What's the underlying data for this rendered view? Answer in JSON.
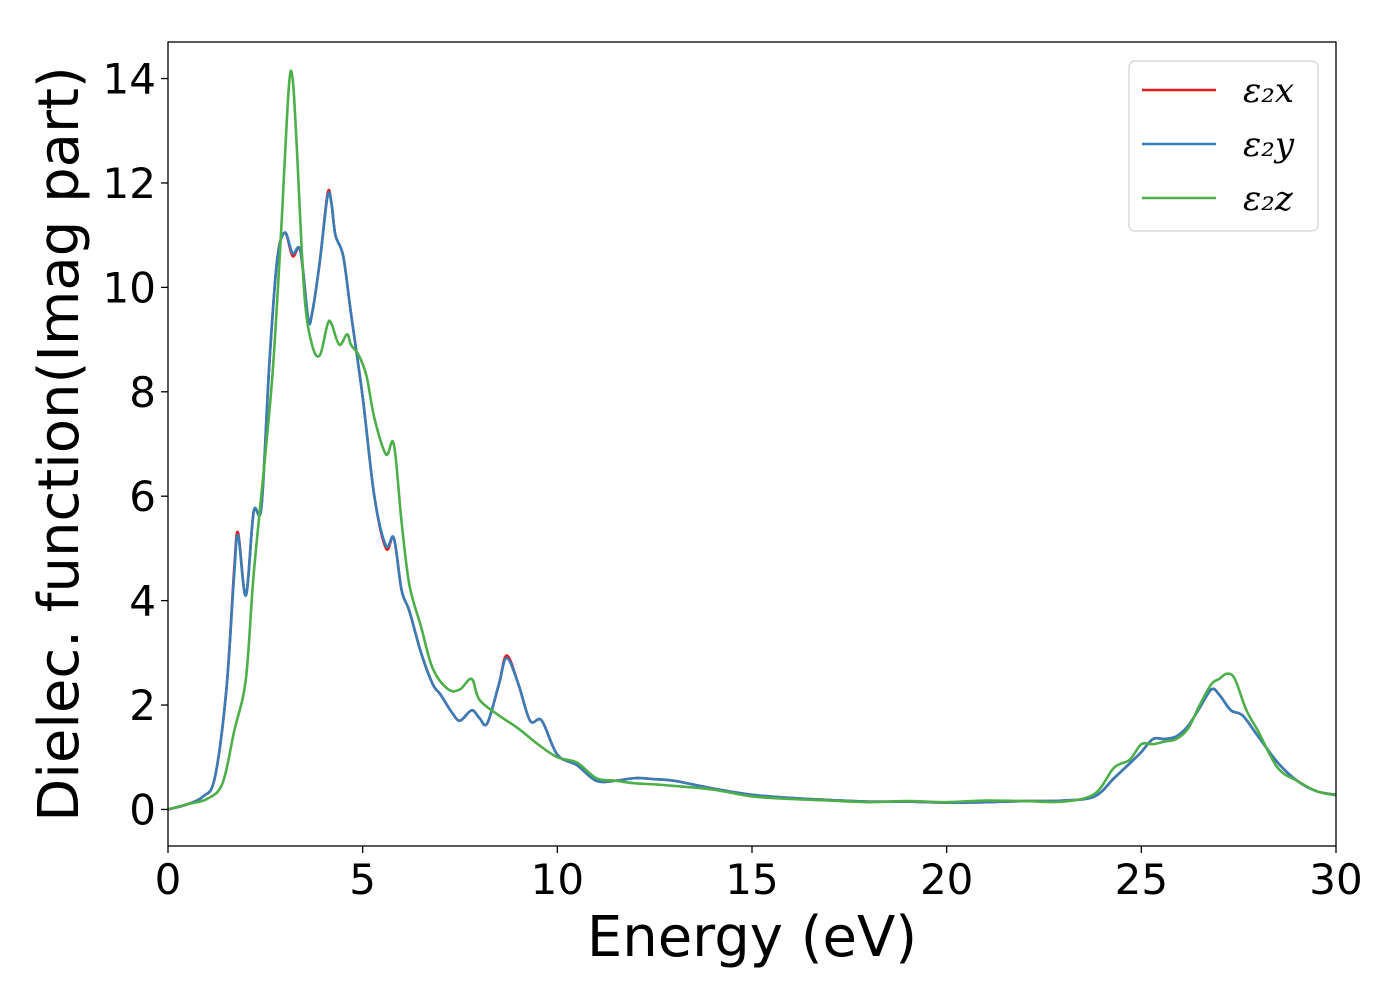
{
  "chart_data": {
    "type": "line",
    "xlabel": "Energy (eV)",
    "ylabel": "Dielec. function(Imag part)",
    "xlim": [
      0,
      30
    ],
    "ylim": [
      -0.7,
      14.7
    ],
    "xticks": [
      0,
      5,
      10,
      15,
      20,
      25,
      30
    ],
    "yticks": [
      0,
      2,
      4,
      6,
      8,
      10,
      12,
      14
    ],
    "grid": false,
    "legend_position": "top-right",
    "series": [
      {
        "name": "ε₂x",
        "color": "#e41a1c",
        "x": [
          0,
          0.5,
          0.9,
          1.2,
          1.5,
          1.7,
          1.8,
          2.0,
          2.2,
          2.4,
          2.6,
          2.8,
          3.0,
          3.2,
          3.4,
          3.6,
          3.7,
          3.9,
          4.1,
          4.2,
          4.3,
          4.5,
          4.7,
          5.0,
          5.3,
          5.6,
          5.8,
          6.0,
          6.2,
          6.5,
          6.8,
          7.0,
          7.3,
          7.5,
          7.8,
          8.0,
          8.2,
          8.5,
          8.7,
          9.0,
          9.3,
          9.6,
          10.0,
          10.5,
          11.0,
          11.5,
          12.0,
          12.5,
          13.0,
          14.0,
          15.0,
          16.0,
          17.0,
          18.0,
          19.0,
          20.0,
          21.0,
          22.0,
          23.0,
          23.8,
          24.3,
          24.8,
          25.0,
          25.3,
          25.6,
          25.9,
          26.2,
          26.5,
          26.8,
          27.0,
          27.3,
          27.6,
          28.0,
          28.5,
          29.0,
          29.5,
          30.0
        ],
        "values": [
          0.0,
          0.1,
          0.25,
          0.6,
          2.3,
          4.6,
          5.3,
          4.1,
          5.7,
          5.8,
          8.5,
          10.5,
          11.05,
          10.6,
          10.7,
          9.4,
          9.5,
          10.5,
          11.8,
          11.6,
          11.0,
          10.6,
          9.5,
          7.9,
          6.0,
          5.0,
          5.2,
          4.2,
          3.8,
          3.0,
          2.4,
          2.2,
          1.85,
          1.7,
          1.9,
          1.75,
          1.65,
          2.4,
          2.95,
          2.4,
          1.7,
          1.7,
          1.05,
          0.85,
          0.55,
          0.55,
          0.6,
          0.58,
          0.55,
          0.4,
          0.28,
          0.22,
          0.18,
          0.15,
          0.15,
          0.13,
          0.14,
          0.16,
          0.17,
          0.25,
          0.6,
          0.95,
          1.1,
          1.35,
          1.35,
          1.4,
          1.6,
          1.95,
          2.3,
          2.2,
          1.9,
          1.8,
          1.4,
          0.9,
          0.55,
          0.35,
          0.28
        ]
      },
      {
        "name": "ε₂y",
        "color": "#377eb8",
        "x": [
          0,
          0.5,
          0.9,
          1.2,
          1.5,
          1.7,
          1.8,
          2.0,
          2.2,
          2.4,
          2.6,
          2.8,
          3.0,
          3.2,
          3.4,
          3.6,
          3.7,
          3.9,
          4.1,
          4.2,
          4.3,
          4.5,
          4.7,
          5.0,
          5.3,
          5.6,
          5.8,
          6.0,
          6.2,
          6.5,
          6.8,
          7.0,
          7.3,
          7.5,
          7.8,
          8.0,
          8.2,
          8.5,
          8.7,
          9.0,
          9.3,
          9.6,
          10.0,
          10.5,
          11.0,
          11.5,
          12.0,
          12.5,
          13.0,
          14.0,
          15.0,
          16.0,
          17.0,
          18.0,
          19.0,
          20.0,
          21.0,
          22.0,
          23.0,
          23.8,
          24.3,
          24.8,
          25.0,
          25.3,
          25.6,
          25.9,
          26.2,
          26.5,
          26.8,
          27.0,
          27.3,
          27.6,
          28.0,
          28.5,
          29.0,
          29.5,
          30.0
        ],
        "values": [
          0.0,
          0.1,
          0.25,
          0.6,
          2.3,
          4.5,
          5.25,
          4.1,
          5.7,
          5.8,
          8.5,
          10.5,
          11.05,
          10.65,
          10.7,
          9.4,
          9.5,
          10.5,
          11.75,
          11.6,
          11.0,
          10.6,
          9.5,
          7.9,
          6.0,
          5.05,
          5.2,
          4.2,
          3.8,
          3.0,
          2.4,
          2.2,
          1.85,
          1.7,
          1.9,
          1.75,
          1.65,
          2.4,
          2.9,
          2.4,
          1.7,
          1.7,
          1.05,
          0.85,
          0.55,
          0.55,
          0.6,
          0.58,
          0.55,
          0.4,
          0.28,
          0.22,
          0.18,
          0.15,
          0.15,
          0.13,
          0.14,
          0.16,
          0.17,
          0.25,
          0.6,
          0.95,
          1.1,
          1.35,
          1.35,
          1.4,
          1.6,
          1.95,
          2.3,
          2.2,
          1.9,
          1.8,
          1.4,
          0.9,
          0.55,
          0.35,
          0.28
        ]
      },
      {
        "name": "ε₂z",
        "color": "#4daf4a",
        "x": [
          0,
          0.5,
          1.0,
          1.4,
          1.7,
          2.0,
          2.2,
          2.5,
          2.7,
          2.9,
          3.1,
          3.2,
          3.3,
          3.5,
          3.7,
          3.9,
          4.1,
          4.2,
          4.4,
          4.6,
          4.7,
          4.9,
          5.1,
          5.3,
          5.6,
          5.8,
          6.0,
          6.2,
          6.5,
          6.8,
          7.2,
          7.5,
          7.8,
          8.0,
          8.5,
          9.0,
          9.5,
          10.0,
          10.5,
          11.0,
          11.5,
          12.0,
          12.5,
          13.0,
          14.0,
          15.0,
          16.0,
          17.0,
          18.0,
          19.0,
          20.0,
          21.0,
          22.0,
          23.0,
          23.8,
          24.3,
          24.7,
          25.0,
          25.3,
          25.6,
          25.9,
          26.2,
          26.5,
          26.8,
          27.0,
          27.2,
          27.4,
          27.7,
          28.0,
          28.5,
          29.0,
          29.5,
          30.0
        ],
        "values": [
          0.0,
          0.1,
          0.2,
          0.5,
          1.5,
          2.5,
          4.5,
          6.8,
          8.5,
          11.0,
          13.8,
          14.0,
          12.8,
          9.9,
          8.9,
          8.7,
          9.3,
          9.3,
          8.9,
          9.1,
          8.9,
          8.7,
          8.3,
          7.5,
          6.8,
          7.0,
          5.5,
          4.3,
          3.5,
          2.7,
          2.3,
          2.3,
          2.5,
          2.1,
          1.8,
          1.55,
          1.25,
          1.0,
          0.9,
          0.6,
          0.55,
          0.5,
          0.48,
          0.45,
          0.38,
          0.25,
          0.2,
          0.17,
          0.14,
          0.16,
          0.14,
          0.17,
          0.16,
          0.15,
          0.3,
          0.8,
          0.95,
          1.25,
          1.25,
          1.3,
          1.35,
          1.55,
          2.0,
          2.4,
          2.5,
          2.6,
          2.5,
          1.9,
          1.5,
          0.8,
          0.55,
          0.35,
          0.27
        ]
      }
    ]
  }
}
